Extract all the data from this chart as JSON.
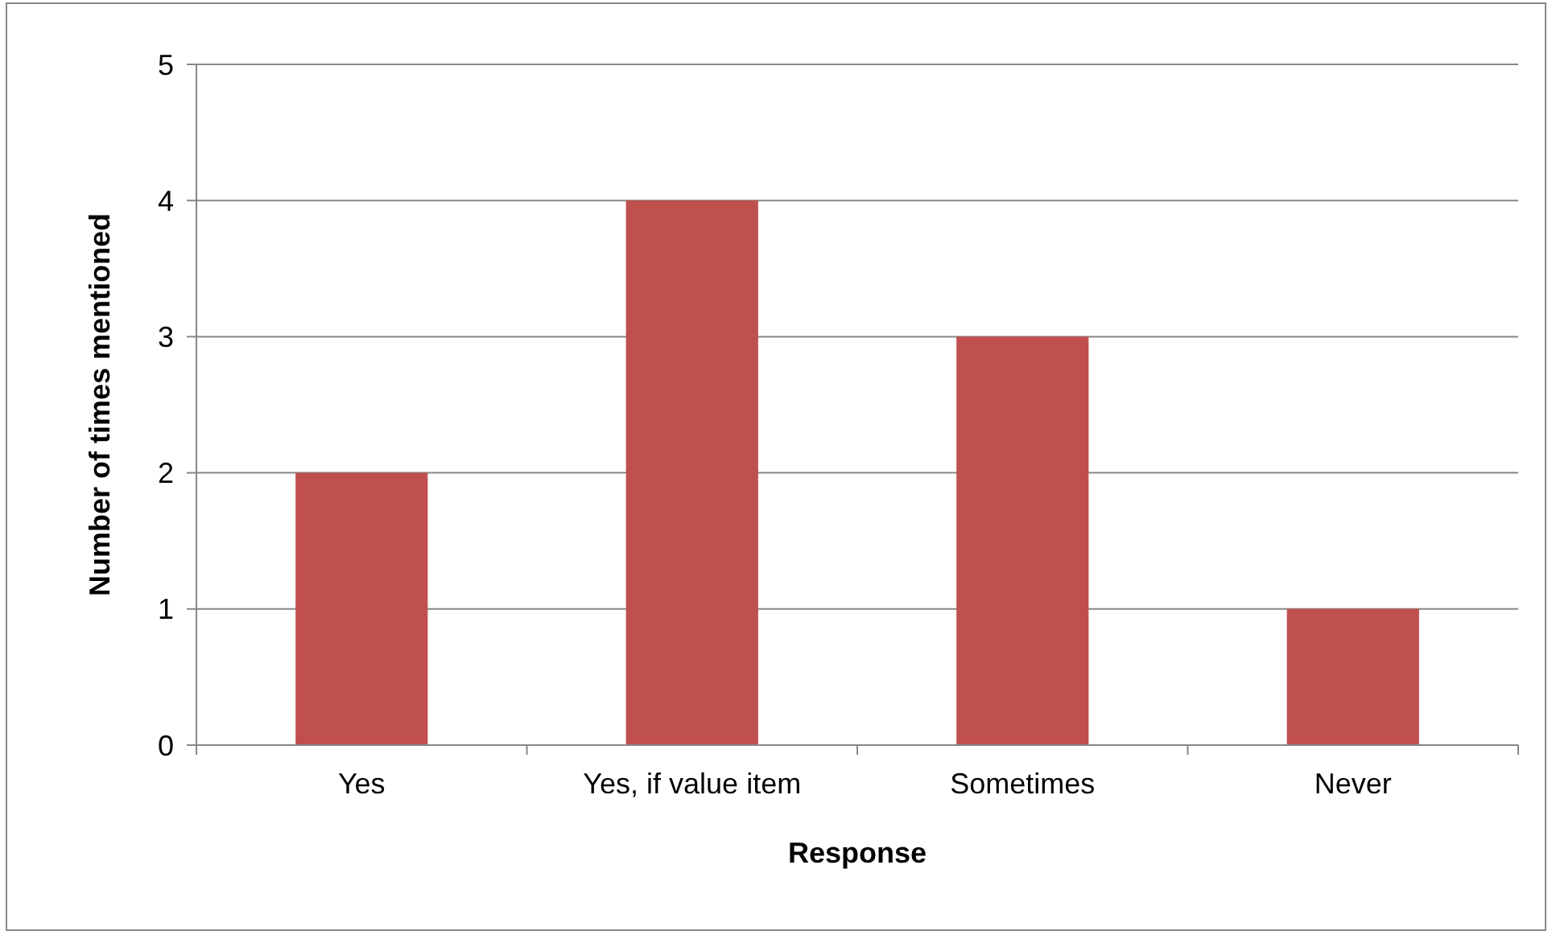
{
  "chart_data": {
    "type": "bar",
    "xlabel": "Response",
    "ylabel": "Number of times mentioned",
    "categories": [
      "Yes",
      "Yes, if value item",
      "Sometimes",
      "Never"
    ],
    "values": [
      2,
      4,
      3,
      1
    ],
    "color": "#c0504d",
    "ylim": [
      0,
      5
    ],
    "yticks": [
      0,
      1,
      2,
      3,
      4,
      5
    ],
    "grid": "y"
  }
}
